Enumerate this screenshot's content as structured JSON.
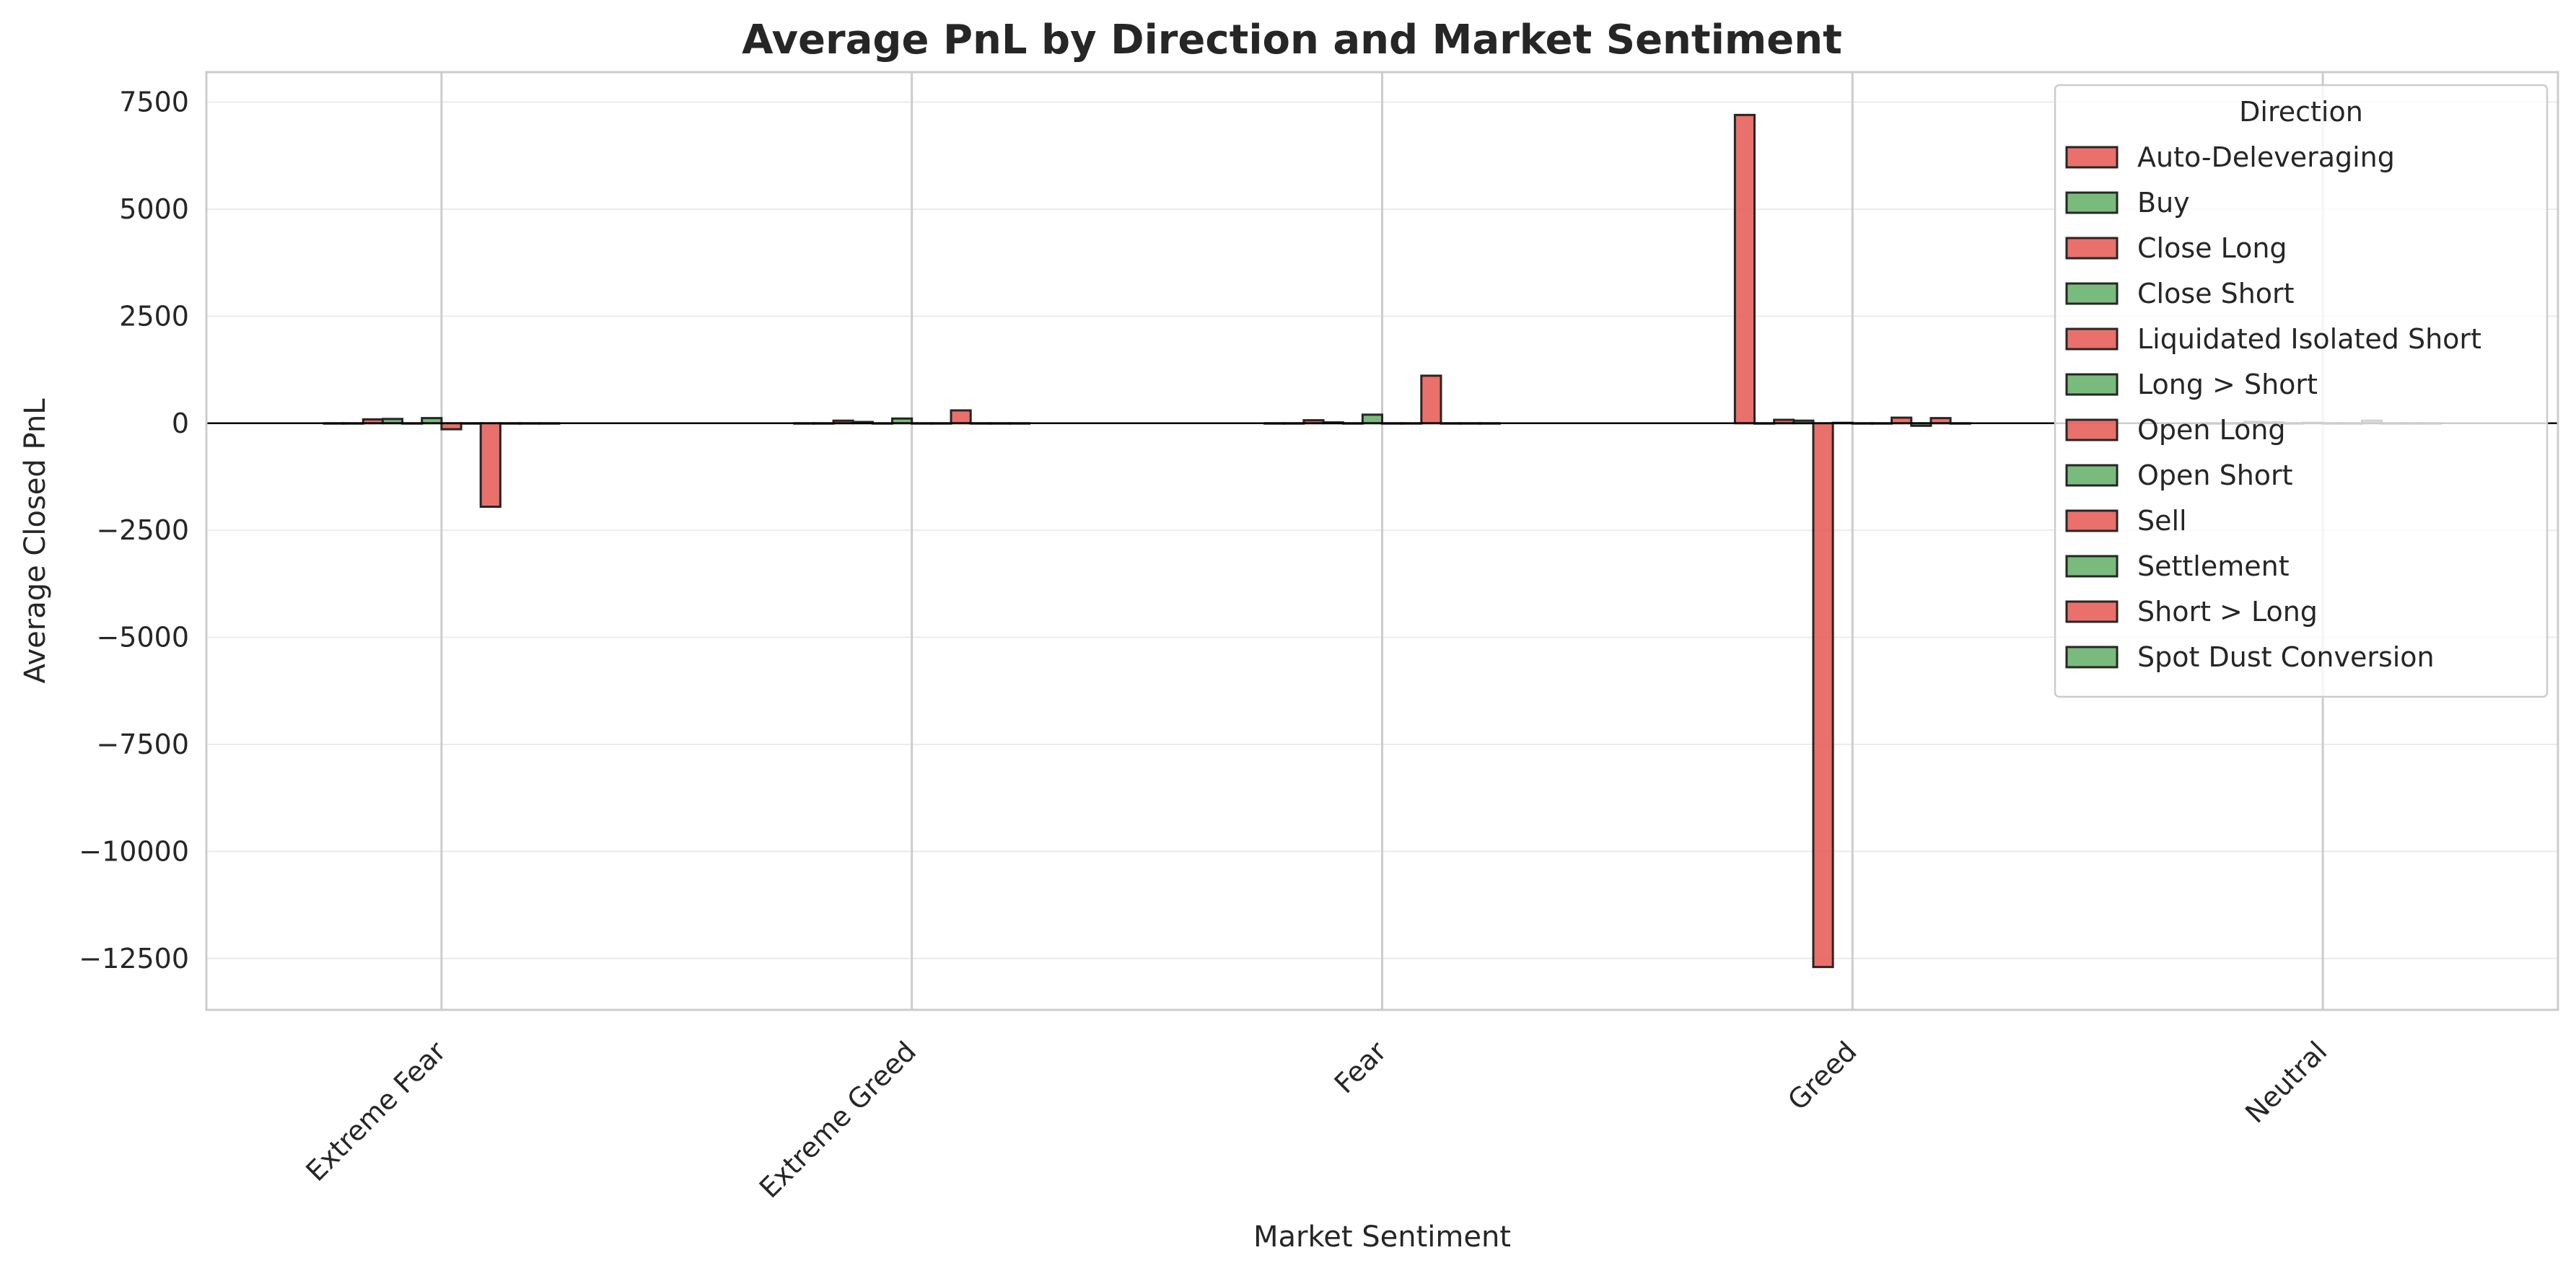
{
  "chart_data": {
    "type": "bar",
    "title": "Average PnL by Direction and Market Sentiment",
    "xlabel": "Market Sentiment",
    "ylabel": "Average Closed PnL",
    "categories": [
      "Extreme Fear",
      "Extreme Greed",
      "Fear",
      "Greed",
      "Neutral"
    ],
    "ylim": [
      -13700,
      8200
    ],
    "yticks": [
      7500,
      5000,
      2500,
      0,
      -2500,
      -5000,
      -7500,
      -10000,
      -12500
    ],
    "ytick_labels": [
      "7500",
      "5000",
      "2500",
      "0",
      "−2500",
      "−5000",
      "−7500",
      "−10000",
      "−12500"
    ],
    "grid": true,
    "legend": {
      "title": "Direction",
      "placement": "top-right"
    },
    "colors": {
      "negative": "#e8615b",
      "positive": "#6ab46e",
      "edge": "#262626"
    },
    "series": [
      {
        "name": "Auto-Deleveraging",
        "values": [
          0,
          0,
          0,
          7200,
          0
        ]
      },
      {
        "name": "Buy",
        "values": [
          0,
          0,
          0,
          0,
          0
        ]
      },
      {
        "name": "Close Long",
        "values": [
          90,
          60,
          70,
          80,
          30
        ]
      },
      {
        "name": "Close Short",
        "values": [
          100,
          30,
          20,
          60,
          20
        ]
      },
      {
        "name": "Liquidated Isolated Short",
        "values": [
          0,
          0,
          0,
          -12700,
          0
        ]
      },
      {
        "name": "Long > Short",
        "values": [
          120,
          110,
          200,
          10,
          10
        ]
      },
      {
        "name": "Open Long",
        "values": [
          -140,
          0,
          0,
          0,
          0
        ]
      },
      {
        "name": "Open Short",
        "values": [
          0,
          0,
          0,
          0,
          0
        ]
      },
      {
        "name": "Sell",
        "values": [
          -1950,
          300,
          1110,
          130,
          60
        ]
      },
      {
        "name": "Settlement",
        "values": [
          0,
          0,
          0,
          -60,
          0
        ]
      },
      {
        "name": "Short > Long",
        "values": [
          0,
          0,
          0,
          120,
          0
        ]
      },
      {
        "name": "Spot Dust Conversion",
        "values": [
          0,
          0,
          0,
          0,
          0
        ]
      }
    ]
  }
}
